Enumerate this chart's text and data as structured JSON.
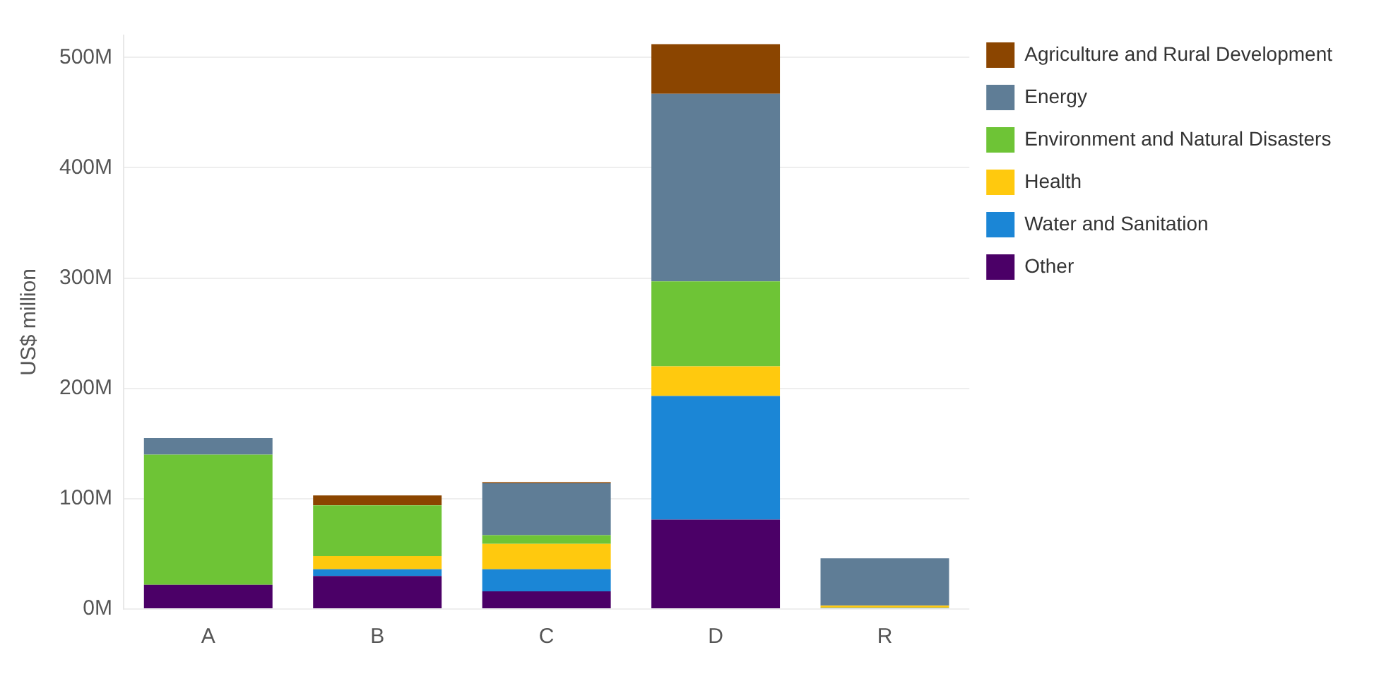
{
  "chart_data": {
    "type": "bar",
    "ylabel": "US$ million",
    "stacked": true,
    "categories": [
      "A",
      "B",
      "C",
      "D",
      "R"
    ],
    "series": [
      {
        "name": "Other",
        "color": "#4b0067",
        "values": [
          22,
          30,
          16,
          81,
          0
        ]
      },
      {
        "name": "Water and Sanitation",
        "color": "#1b86d6",
        "values": [
          0,
          6,
          20,
          112,
          1
        ]
      },
      {
        "name": "Health",
        "color": "#ffc90e",
        "values": [
          0,
          12,
          23,
          27,
          2
        ]
      },
      {
        "name": "Environment and Natural Disasters",
        "color": "#6ec436",
        "values": [
          118,
          46,
          8,
          77,
          0
        ]
      },
      {
        "name": "Energy",
        "color": "#5f7d96",
        "values": [
          15,
          0,
          47,
          170,
          43
        ]
      },
      {
        "name": "Agriculture and Rural Development",
        "color": "#8b4500",
        "values": [
          0,
          9,
          1,
          45,
          0
        ]
      }
    ],
    "ylim": [
      0,
      520
    ],
    "yticks": [
      {
        "value": 0,
        "label": "0M"
      },
      {
        "value": 100,
        "label": "100M"
      },
      {
        "value": 200,
        "label": "200M"
      },
      {
        "value": 300,
        "label": "300M"
      },
      {
        "value": 400,
        "label": "400M"
      },
      {
        "value": 500,
        "label": "500M"
      }
    ],
    "grid": "y",
    "legend": "top right"
  }
}
